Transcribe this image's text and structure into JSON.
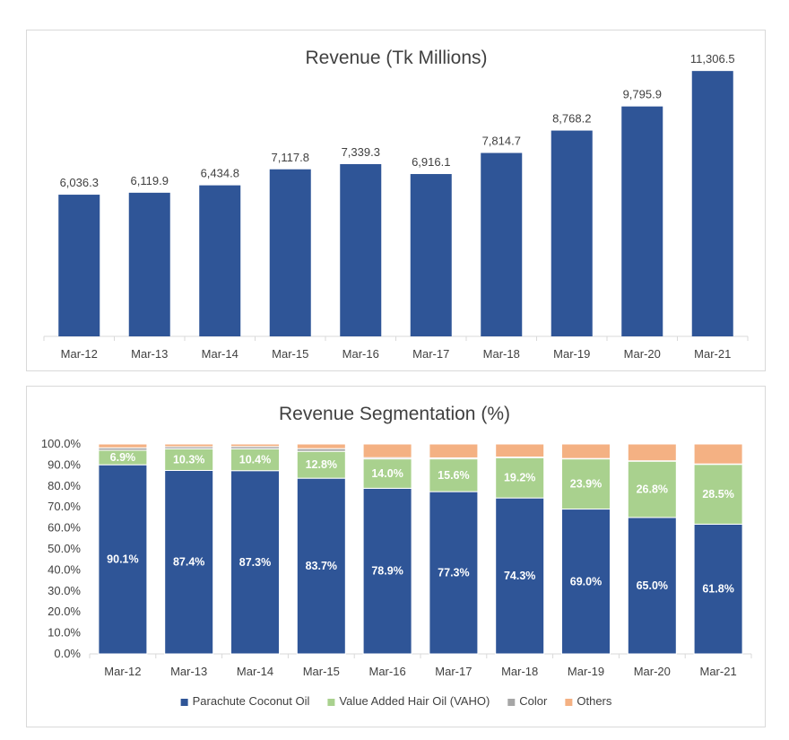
{
  "colors": {
    "bar": "#2f5597",
    "pco": "#2f5597",
    "vaho": "#a9d18e",
    "color": "#a6a6a6",
    "others": "#f4b183",
    "axis": "#d9d9d9",
    "text": "#404040"
  },
  "chart_data": [
    {
      "type": "bar",
      "title": "Revenue (Tk Millions)",
      "categories": [
        "Mar-12",
        "Mar-13",
        "Mar-14",
        "Mar-15",
        "Mar-16",
        "Mar-17",
        "Mar-18",
        "Mar-19",
        "Mar-20",
        "Mar-21"
      ],
      "values": [
        6036.3,
        6119.9,
        6434.8,
        7117.8,
        7339.3,
        6916.1,
        7814.7,
        8768.2,
        9795.9,
        11306.5
      ],
      "labels": [
        "6,036.3",
        "6,119.9",
        "6,434.8",
        "7,117.8",
        "7,339.3",
        "6,916.1",
        "7,814.7",
        "8,768.2",
        "9,795.9",
        "11,306.5"
      ],
      "ylim": [
        0,
        12000
      ],
      "grid": false,
      "legend": false
    },
    {
      "type": "bar",
      "stacked": true,
      "title": "Revenue Segmentation (%)",
      "categories": [
        "Mar-12",
        "Mar-13",
        "Mar-14",
        "Mar-15",
        "Mar-16",
        "Mar-17",
        "Mar-18",
        "Mar-19",
        "Mar-20",
        "Mar-21"
      ],
      "yticks": [
        "0.0%",
        "10.0%",
        "20.0%",
        "30.0%",
        "40.0%",
        "50.0%",
        "60.0%",
        "70.0%",
        "80.0%",
        "90.0%",
        "100.0%"
      ],
      "ylim": [
        0,
        100
      ],
      "grid": false,
      "legend_position": "bottom",
      "series": [
        {
          "name": "Parachute Coconut Oil",
          "key": "pco",
          "values": [
            90.1,
            87.4,
            87.3,
            83.7,
            78.9,
            77.3,
            74.3,
            69.0,
            65.0,
            61.8
          ],
          "labels": [
            "90.1%",
            "87.4%",
            "87.3%",
            "83.7%",
            "78.9%",
            "77.3%",
            "74.3%",
            "69.0%",
            "65.0%",
            "61.8%"
          ]
        },
        {
          "name": "Value Added Hair Oil (VAHO)",
          "key": "vaho",
          "values": [
            6.9,
            10.3,
            10.4,
            12.8,
            14.0,
            15.6,
            19.2,
            23.9,
            26.8,
            28.5
          ],
          "labels": [
            "6.9%",
            "10.3%",
            "10.4%",
            "12.8%",
            "14.0%",
            "15.6%",
            "19.2%",
            "23.9%",
            "26.8%",
            "28.5%"
          ]
        },
        {
          "name": "Color",
          "key": "color",
          "values": [
            1.2,
            1.0,
            1.1,
            1.3,
            0.6,
            0.5,
            0.3,
            0.2,
            0.2,
            0.2
          ]
        },
        {
          "name": "Others",
          "key": "others",
          "values": [
            1.8,
            1.3,
            1.2,
            2.2,
            6.5,
            6.6,
            6.2,
            6.9,
            8.0,
            9.5
          ]
        }
      ]
    }
  ]
}
